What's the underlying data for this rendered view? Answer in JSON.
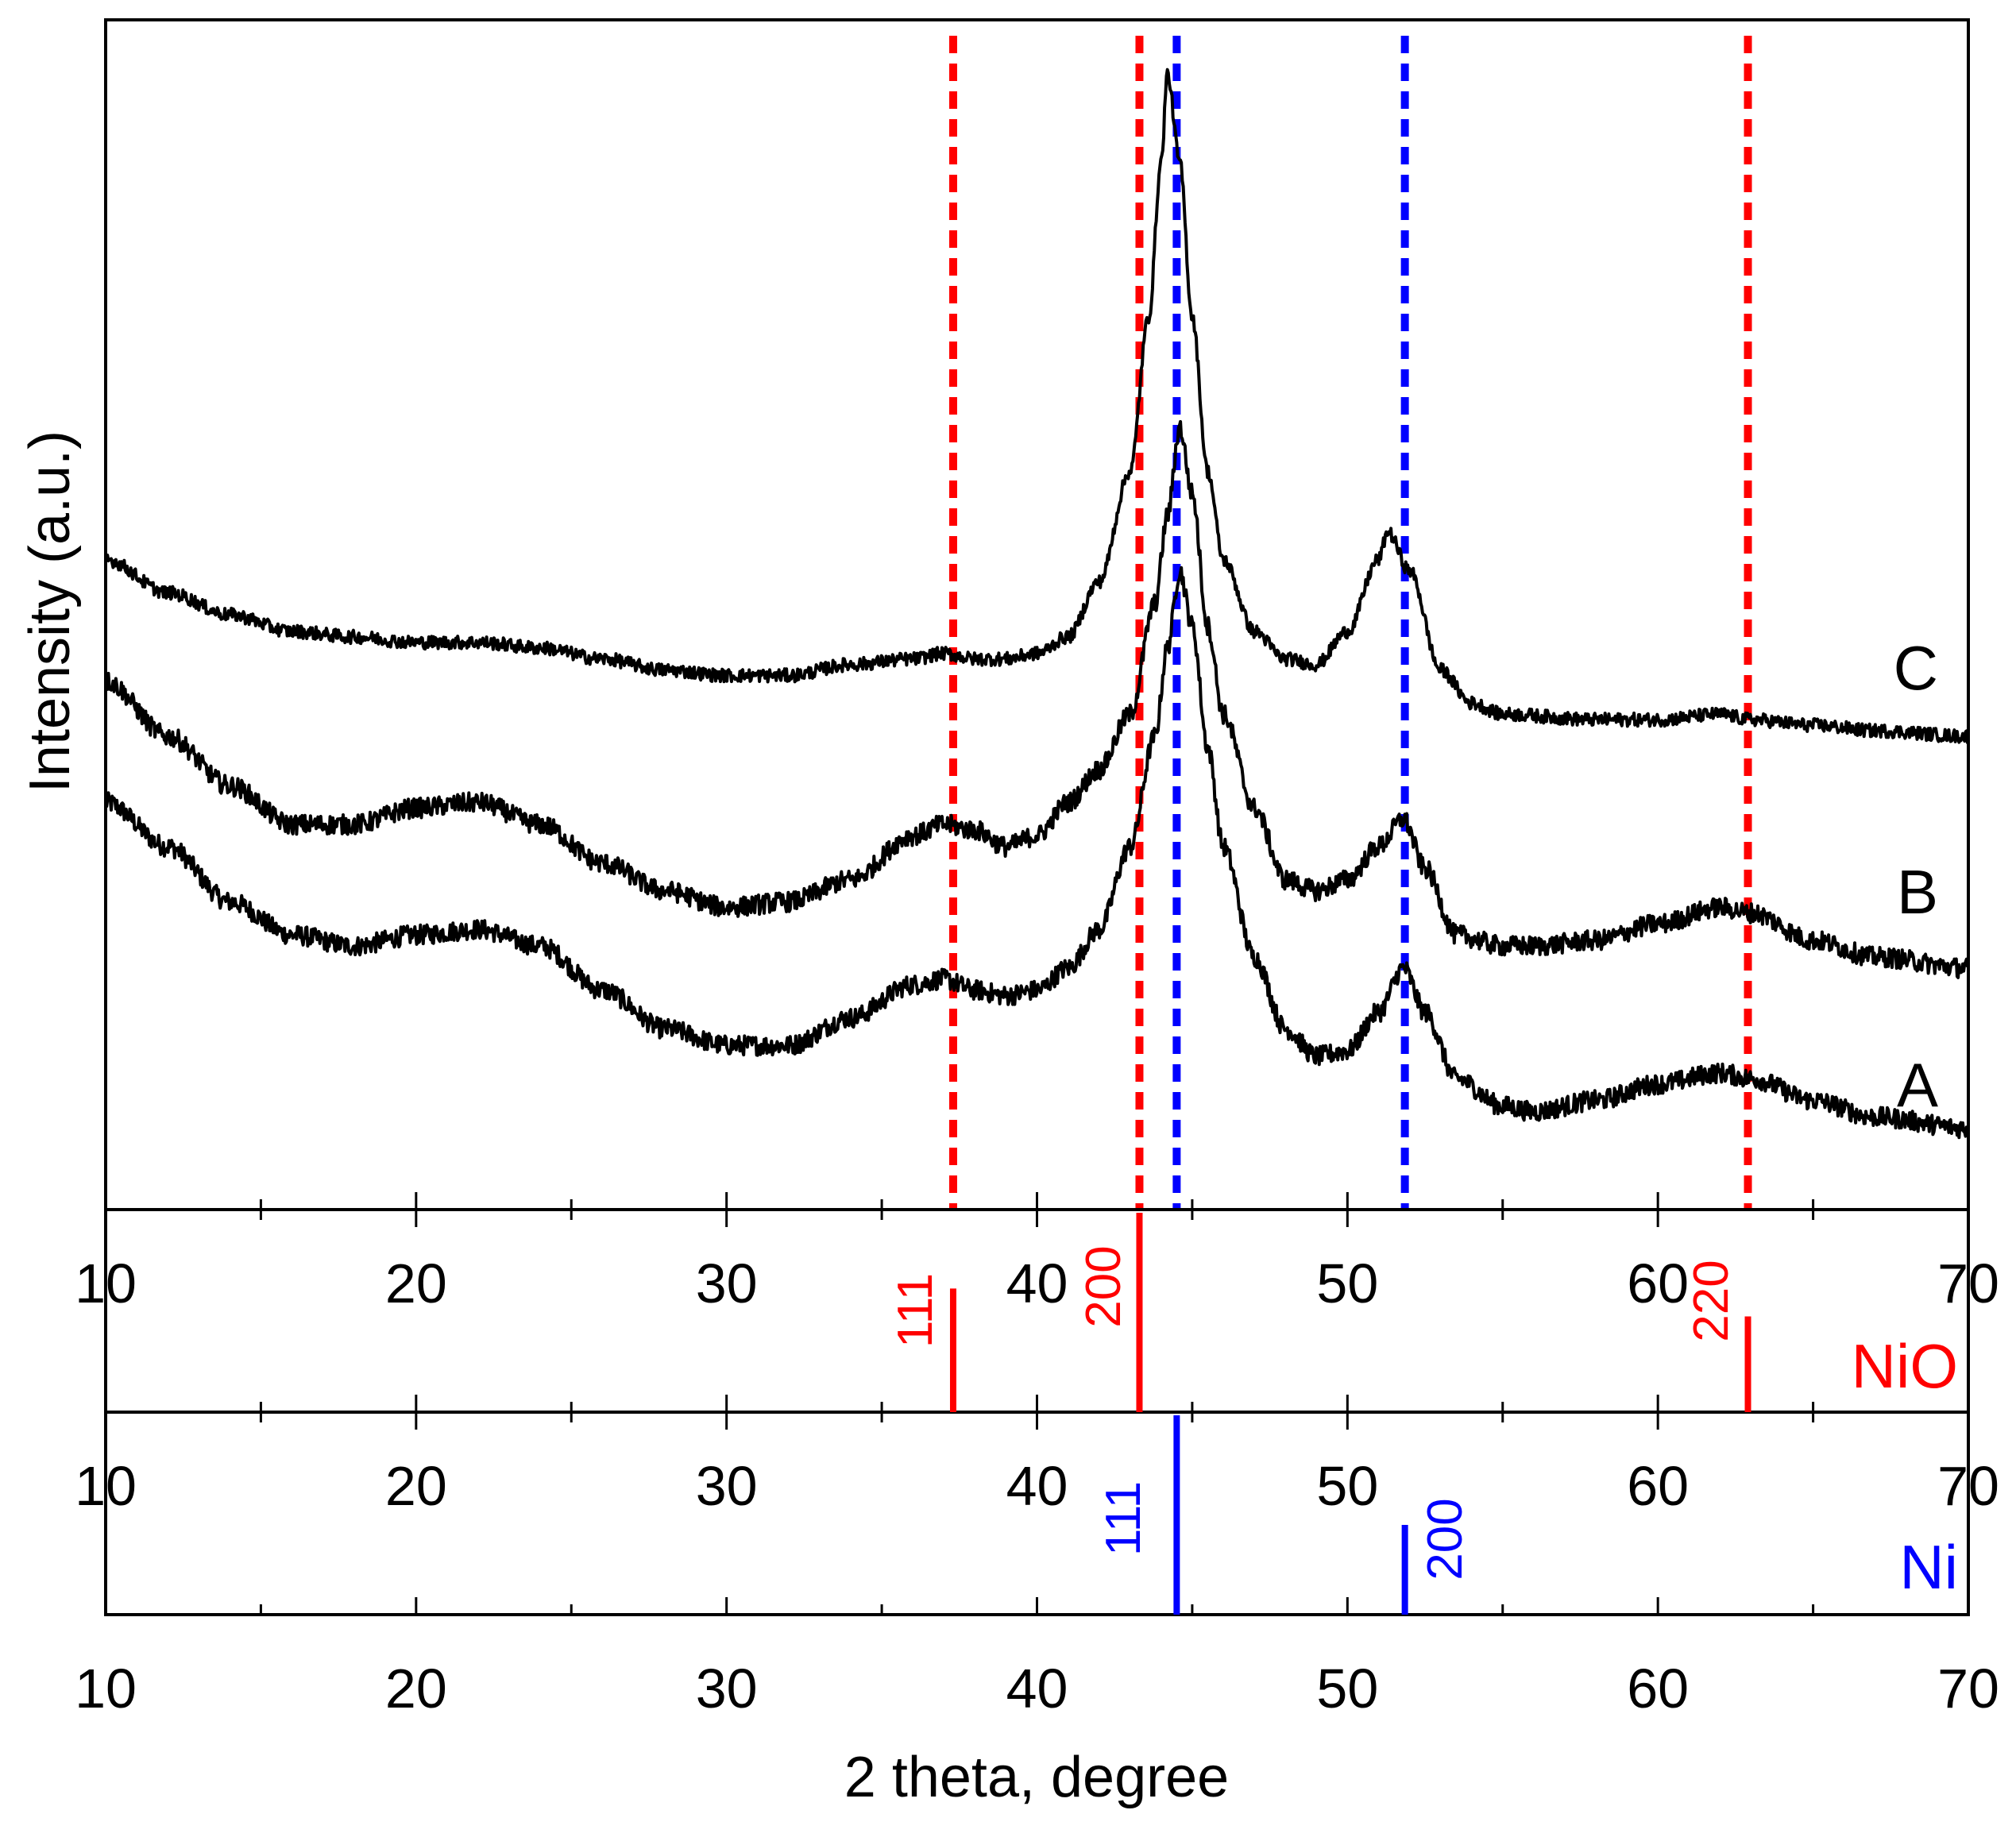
{
  "chart_data": {
    "type": "line",
    "title": "",
    "xlabel": "2 theta, degree",
    "ylabel": "Intensity (a.u.)",
    "xlim": [
      10,
      70
    ],
    "x_ticks": [
      10,
      20,
      30,
      40,
      50,
      60,
      70
    ],
    "series": [
      {
        "name": "A",
        "label": "A",
        "points": [
          [
            10,
            0.34
          ],
          [
            12,
            0.3
          ],
          [
            14,
            0.25
          ],
          [
            16,
            0.22
          ],
          [
            18,
            0.21
          ],
          [
            20,
            0.22
          ],
          [
            22,
            0.225
          ],
          [
            24,
            0.21
          ],
          [
            26,
            0.17
          ],
          [
            28,
            0.135
          ],
          [
            30,
            0.12
          ],
          [
            32,
            0.12
          ],
          [
            34,
            0.145
          ],
          [
            36,
            0.175
          ],
          [
            37,
            0.18
          ],
          [
            38,
            0.17
          ],
          [
            39,
            0.165
          ],
          [
            40,
            0.17
          ],
          [
            41,
            0.19
          ],
          [
            42,
            0.225
          ],
          [
            43,
            0.3
          ],
          [
            43.8,
            0.4
          ],
          [
            44.2,
            0.48
          ],
          [
            44.6,
            0.55
          ],
          [
            45.0,
            0.5
          ],
          [
            45.5,
            0.39
          ],
          [
            46,
            0.3
          ],
          [
            47,
            0.2
          ],
          [
            48,
            0.135
          ],
          [
            49,
            0.11
          ],
          [
            50,
            0.115
          ],
          [
            51,
            0.15
          ],
          [
            51.8,
            0.19
          ],
          [
            52.5,
            0.15
          ],
          [
            53.5,
            0.09
          ],
          [
            55,
            0.065
          ],
          [
            56,
            0.06
          ],
          [
            58,
            0.07
          ],
          [
            60,
            0.085
          ],
          [
            62,
            0.095
          ],
          [
            63,
            0.09
          ],
          [
            65,
            0.07
          ],
          [
            67,
            0.055
          ],
          [
            70,
            0.045
          ]
        ]
      },
      {
        "name": "B",
        "label": "B",
        "points": [
          [
            10,
            0.45
          ],
          [
            12,
            0.4
          ],
          [
            14,
            0.355
          ],
          [
            16,
            0.32
          ],
          [
            18,
            0.32
          ],
          [
            20,
            0.335
          ],
          [
            22,
            0.34
          ],
          [
            24,
            0.32
          ],
          [
            26,
            0.285
          ],
          [
            28,
            0.26
          ],
          [
            30,
            0.245
          ],
          [
            32,
            0.25
          ],
          [
            34,
            0.27
          ],
          [
            36,
            0.31
          ],
          [
            37,
            0.32
          ],
          [
            38,
            0.315
          ],
          [
            39,
            0.3
          ],
          [
            40,
            0.31
          ],
          [
            41,
            0.34
          ],
          [
            42,
            0.37
          ],
          [
            43,
            0.42
          ],
          [
            43.8,
            0.52
          ],
          [
            44.2,
            0.6
          ],
          [
            44.6,
            0.68
          ],
          [
            45.0,
            0.62
          ],
          [
            45.5,
            0.5
          ],
          [
            46,
            0.42
          ],
          [
            47,
            0.335
          ],
          [
            48,
            0.27
          ],
          [
            49,
            0.26
          ],
          [
            50,
            0.27
          ],
          [
            51,
            0.3
          ],
          [
            51.8,
            0.325
          ],
          [
            52.5,
            0.28
          ],
          [
            53.5,
            0.22
          ],
          [
            55,
            0.21
          ],
          [
            56,
            0.21
          ],
          [
            58,
            0.215
          ],
          [
            60,
            0.23
          ],
          [
            62,
            0.245
          ],
          [
            63,
            0.24
          ],
          [
            65,
            0.215
          ],
          [
            67,
            0.2
          ],
          [
            70,
            0.19
          ]
        ]
      },
      {
        "name": "C",
        "label": "C",
        "points": [
          [
            10,
            0.56
          ],
          [
            12,
            0.53
          ],
          [
            14,
            0.51
          ],
          [
            16,
            0.495
          ],
          [
            18,
            0.49
          ],
          [
            20,
            0.485
          ],
          [
            22,
            0.485
          ],
          [
            24,
            0.48
          ],
          [
            26,
            0.47
          ],
          [
            28,
            0.46
          ],
          [
            30,
            0.455
          ],
          [
            32,
            0.455
          ],
          [
            34,
            0.465
          ],
          [
            36,
            0.47
          ],
          [
            37,
            0.475
          ],
          [
            38,
            0.47
          ],
          [
            39,
            0.47
          ],
          [
            40,
            0.475
          ],
          [
            41,
            0.49
          ],
          [
            42,
            0.54
          ],
          [
            43,
            0.64
          ],
          [
            43.6,
            0.78
          ],
          [
            44.0,
            0.92
          ],
          [
            44.2,
            1.0
          ],
          [
            44.6,
            0.92
          ],
          [
            45.0,
            0.78
          ],
          [
            45.5,
            0.64
          ],
          [
            46,
            0.56
          ],
          [
            47,
            0.495
          ],
          [
            48,
            0.47
          ],
          [
            49,
            0.465
          ],
          [
            50,
            0.495
          ],
          [
            51,
            0.56
          ],
          [
            51.3,
            0.585
          ],
          [
            52,
            0.55
          ],
          [
            53,
            0.46
          ],
          [
            54,
            0.43
          ],
          [
            55,
            0.42
          ],
          [
            58,
            0.415
          ],
          [
            60,
            0.415
          ],
          [
            62,
            0.42
          ],
          [
            63,
            0.415
          ],
          [
            65,
            0.41
          ],
          [
            67,
            0.405
          ],
          [
            70,
            0.4
          ]
        ]
      }
    ],
    "reference_lines": [
      {
        "x": 37.3,
        "color": "#ff0000",
        "style": "dashed"
      },
      {
        "x": 43.3,
        "color": "#ff0000",
        "style": "dashed"
      },
      {
        "x": 44.5,
        "color": "#0000ff",
        "style": "dashed"
      },
      {
        "x": 51.85,
        "color": "#0000ff",
        "style": "dashed"
      },
      {
        "x": 62.9,
        "color": "#ff0000",
        "style": "dashed"
      }
    ],
    "reference_patterns": [
      {
        "name": "NiO",
        "label": "NiO",
        "color": "#ff0000",
        "peaks": [
          {
            "x": 37.3,
            "intensity": 0.62,
            "hkl": "111"
          },
          {
            "x": 43.3,
            "intensity": 1.0,
            "hkl": "200"
          },
          {
            "x": 62.9,
            "intensity": 0.48,
            "hkl": "220"
          }
        ]
      },
      {
        "name": "Ni",
        "label": "Ni",
        "color": "#0000ff",
        "peaks": [
          {
            "x": 44.5,
            "intensity": 1.0,
            "hkl": "111"
          },
          {
            "x": 51.85,
            "intensity": 0.45,
            "hkl": "200"
          }
        ]
      }
    ]
  }
}
